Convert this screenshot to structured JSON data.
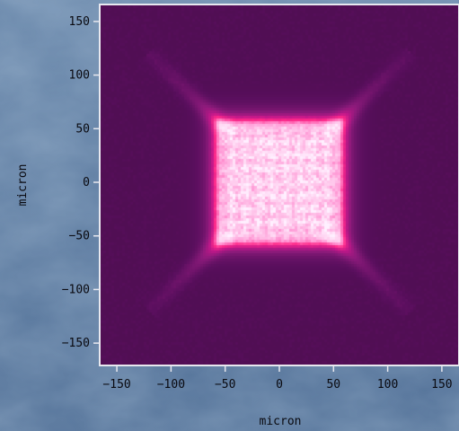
{
  "chart_data": {
    "type": "heatmap",
    "title": "",
    "xlabel": "micron",
    "ylabel": "micron",
    "xlim": [
      -165,
      165
    ],
    "ylim": [
      -170,
      165
    ],
    "xticks": [
      -150,
      -100,
      -50,
      0,
      50,
      100,
      150
    ],
    "yticks": [
      -150,
      -100,
      -50,
      0,
      50,
      100,
      150
    ],
    "grid": false,
    "legend": "none",
    "colormap": [
      "#3a0a3c",
      "#5a0f5e",
      "#8a1a7a",
      "#c0188a",
      "#ff2a8a",
      "#ff9ad6",
      "#fff0ff"
    ],
    "features": {
      "bright_square_x": [
        -55,
        55
      ],
      "bright_square_y": [
        -55,
        55
      ],
      "diagonal_streak_extent": 110,
      "background_level": 0.12
    }
  }
}
